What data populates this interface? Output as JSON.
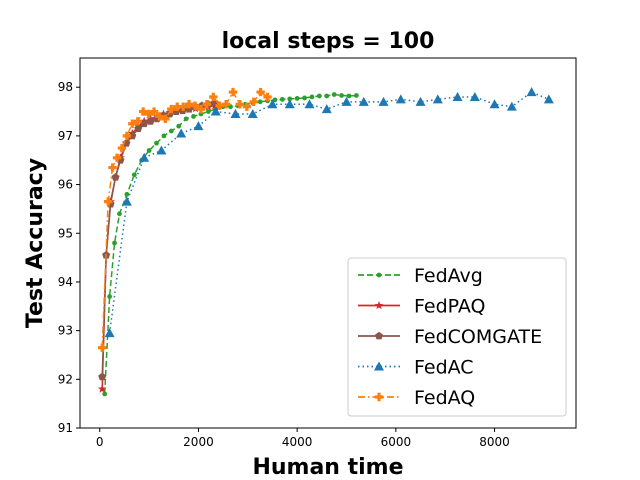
{
  "chart_data": {
    "type": "line",
    "title": "local steps = 100",
    "xlabel": "Human time",
    "ylabel": "Test Accuracy",
    "xlim": [
      -400,
      9650
    ],
    "ylim": [
      91,
      98.6
    ],
    "xticks": [
      0,
      2000,
      4000,
      6000,
      8000
    ],
    "xtick_labels": [
      "0",
      "2000",
      "4000",
      "6000",
      "8000"
    ],
    "yticks": [
      91,
      92,
      93,
      94,
      95,
      96,
      97,
      98
    ],
    "ytick_labels": [
      "91",
      "92",
      "93",
      "94",
      "95",
      "96",
      "97",
      "98"
    ],
    "grid": false,
    "legend_position": "lower-right",
    "series": [
      {
        "name": "FedAvg",
        "color": "#2ca02c",
        "linestyle": "dashed",
        "marker": "circle",
        "x": [
          100,
          200,
          300,
          400,
          550,
          700,
          850,
          1000,
          1150,
          1300,
          1450,
          1600,
          1750,
          1900,
          2050,
          2200,
          2350,
          2500,
          2650,
          2800,
          2950,
          3100,
          3250,
          3400,
          3550,
          3700,
          3850,
          4000,
          4150,
          4300,
          4450,
          4600,
          4750,
          4900,
          5050,
          5200
        ],
        "y": [
          91.7,
          93.7,
          94.8,
          95.4,
          95.8,
          96.2,
          96.5,
          96.7,
          96.85,
          97.0,
          97.1,
          97.2,
          97.35,
          97.4,
          97.45,
          97.5,
          97.55,
          97.6,
          97.6,
          97.62,
          97.65,
          97.68,
          97.7,
          97.72,
          97.74,
          97.75,
          97.76,
          97.77,
          97.78,
          97.8,
          97.82,
          97.82,
          97.85,
          97.83,
          97.82,
          97.83
        ]
      },
      {
        "name": "FedPAQ",
        "color": "#d62728",
        "linestyle": "solid",
        "marker": "star",
        "x": [
          50,
          130,
          220,
          320,
          420,
          540,
          660,
          780,
          900,
          1030,
          1160,
          1290,
          1420,
          1550,
          1680,
          1810,
          1940,
          2070,
          2200,
          2330
        ],
        "y": [
          91.8,
          94.55,
          95.65,
          96.15,
          96.55,
          96.85,
          97.05,
          97.2,
          97.3,
          97.35,
          97.4,
          97.45,
          97.48,
          97.5,
          97.52,
          97.54,
          97.56,
          97.58,
          97.6,
          97.62
        ]
      },
      {
        "name": "FedCOMGATE",
        "color": "#8c564b",
        "linestyle": "solid",
        "marker": "pentagon",
        "x": [
          50,
          130,
          220,
          320,
          420,
          540,
          660,
          780,
          900,
          1030,
          1160,
          1290,
          1420,
          1550,
          1680,
          1810,
          1940,
          2070,
          2200,
          2330
        ],
        "y": [
          92.05,
          94.55,
          95.6,
          96.15,
          96.5,
          96.85,
          97.0,
          97.15,
          97.25,
          97.3,
          97.35,
          97.42,
          97.45,
          97.5,
          97.52,
          97.55,
          97.6,
          97.62,
          97.65,
          97.68
        ]
      },
      {
        "name": "FedAC",
        "color": "#1f77b4",
        "linestyle": "dotted",
        "marker": "triangle",
        "x": [
          200,
          550,
          900,
          1250,
          1650,
          2000,
          2350,
          2750,
          3100,
          3500,
          3850,
          4250,
          4600,
          5000,
          5350,
          5750,
          6100,
          6500,
          6850,
          7250,
          7600,
          8000,
          8350,
          8750,
          9100
        ],
        "y": [
          92.95,
          95.65,
          96.55,
          96.7,
          97.05,
          97.2,
          97.5,
          97.45,
          97.45,
          97.65,
          97.65,
          97.65,
          97.55,
          97.7,
          97.7,
          97.7,
          97.75,
          97.7,
          97.75,
          97.8,
          97.8,
          97.65,
          97.6,
          97.9,
          97.75
        ]
      },
      {
        "name": "FedAQ",
        "color": "#ff7f0e",
        "linestyle": "dashdot",
        "marker": "plus",
        "x": [
          50,
          170,
          260,
          350,
          450,
          550,
          660,
          770,
          880,
          990,
          1100,
          1210,
          1330,
          1450,
          1570,
          1690,
          1810,
          1930,
          2050,
          2170,
          2300,
          2430,
          2560,
          2700,
          2840,
          2980,
          3120,
          3260,
          3400
        ],
        "y": [
          92.65,
          95.65,
          96.35,
          96.55,
          96.75,
          97.0,
          97.25,
          97.3,
          97.5,
          97.45,
          97.5,
          97.4,
          97.35,
          97.55,
          97.6,
          97.6,
          97.65,
          97.62,
          97.55,
          97.65,
          97.8,
          97.62,
          97.65,
          97.9,
          97.65,
          97.6,
          97.7,
          97.9,
          97.8
        ]
      }
    ]
  }
}
